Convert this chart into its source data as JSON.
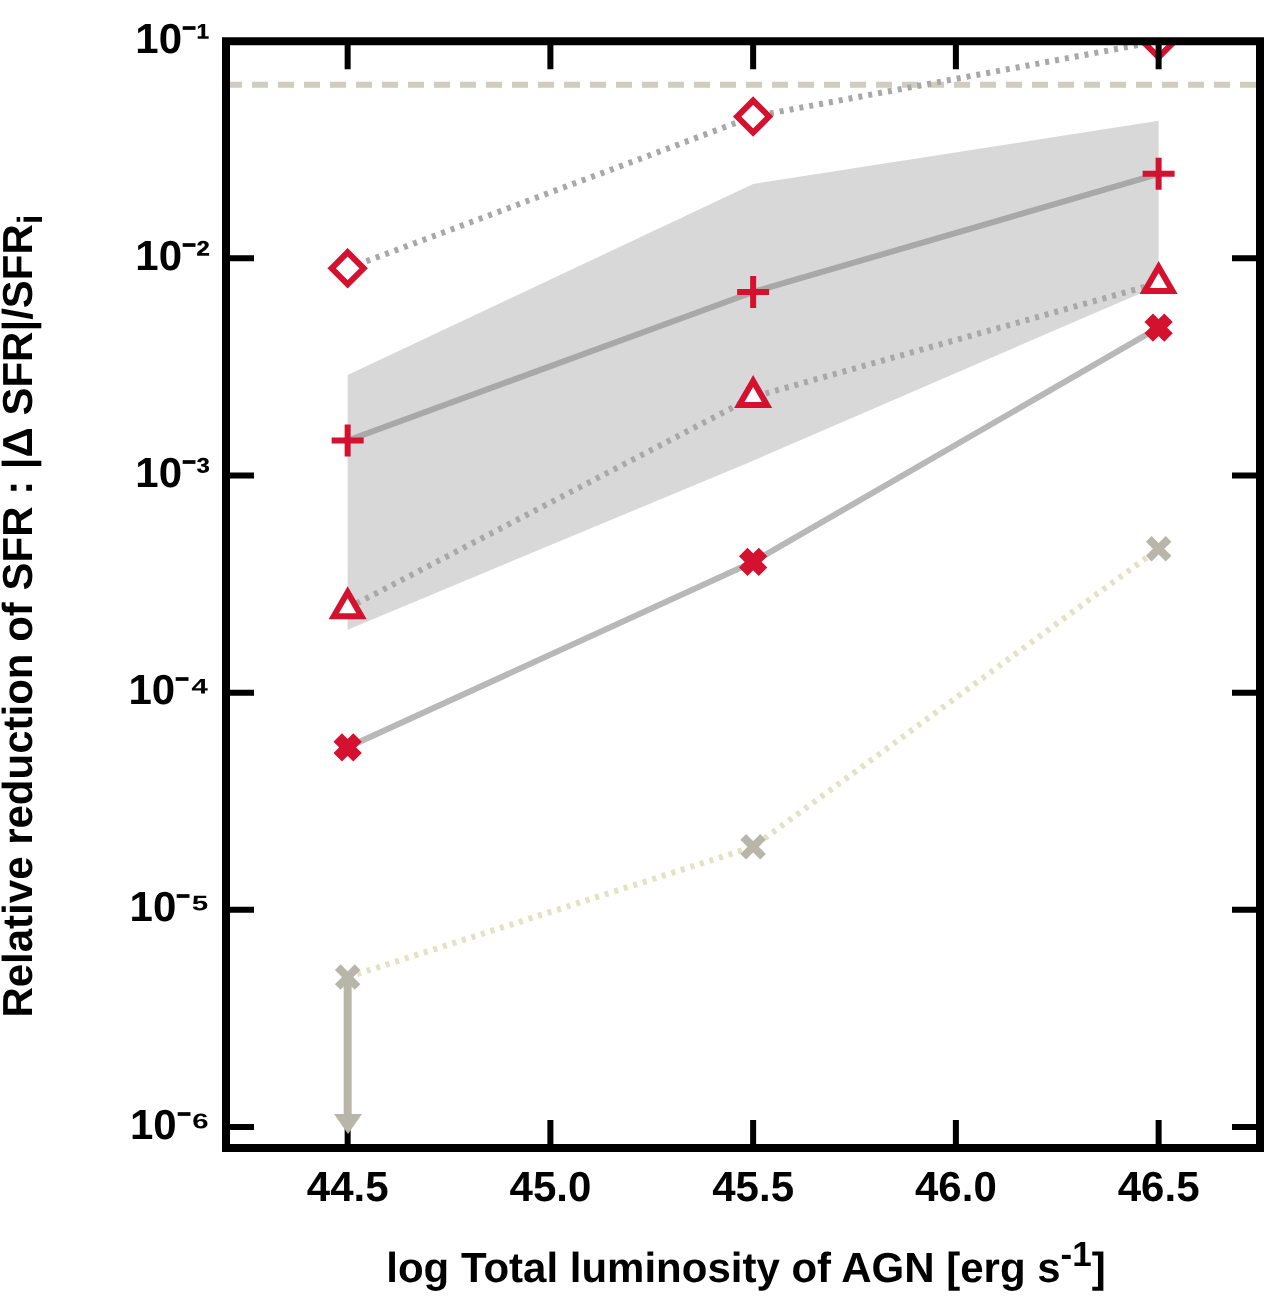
{
  "chart_data": {
    "type": "line",
    "xlabel": "log Total luminosity of AGN [erg s$^{-1}$]",
    "ylabel": "Relative reduction of SFR : |Δ SFR|/SFR$_{i}$",
    "x": [
      44.5,
      45.5,
      46.5
    ],
    "series": [
      {
        "color": "#a8a8a8",
        "marker": "none",
        "line_style": "dotted",
        "values": [
          0.009,
          0.045,
          0.1
        ]
      },
      {
        "color": "#a8a8a8",
        "marker": "none",
        "line_style": "solid",
        "values": [
          0.00145,
          0.007,
          0.0245
        ],
        "lower": [
          0.000195,
          0.00117,
          0.0075
        ],
        "upper": [
          0.0029,
          0.022,
          0.043
        ]
      },
      {
        "color": "#a8a8a8",
        "marker": "none",
        "line_style": "dotted",
        "values": [
          0.000245,
          0.0023,
          0.0077
        ]
      },
      {
        "color": "#b8b8b8",
        "marker": "none",
        "line_style": "solid",
        "values": [
          5.6e-05,
          0.0004,
          0.0048
        ]
      },
      {
        "color": "#e2e2c4",
        "marker": "none",
        "line_style": "dotted",
        "values": [
          4.9e-06,
          1.95e-05,
          0.00046
        ]
      },
      {
        "type": "scatter",
        "color": "#d4112f",
        "marker": "diamond",
        "values": [
          0.009,
          0.045,
          0.1
        ]
      },
      {
        "type": "scatter",
        "color": "#d4112f",
        "marker": "cross",
        "values": [
          0.00145,
          0.007,
          0.0245
        ]
      },
      {
        "type": "scatter",
        "color": "#d4112f",
        "marker": "triangle",
        "values": [
          0.000245,
          0.0023,
          0.0077
        ]
      },
      {
        "type": "scatter",
        "color": "#d4112f",
        "marker": "x",
        "values": [
          5.6e-05,
          0.0004,
          0.0048
        ]
      },
      {
        "type": "scatter",
        "color": "#b8b6a8",
        "marker": "x",
        "values": [
          4.9e-06,
          1.95e-05,
          0.00046
        ],
        "errors": [
          [
            1e-06,
            4.9e-06
          ],
          null,
          null
        ]
      }
    ],
    "ref_lines": [
      {
        "axis": "y",
        "value": 0.063,
        "color": "#d0ccc0",
        "line_style": "dashed"
      }
    ],
    "xlim": [
      44.2,
      46.75
    ],
    "xticks": [
      {
        "value": 44.5,
        "label": "44.5"
      },
      {
        "value": 45,
        "label": "45.0"
      },
      {
        "value": 45.5,
        "label": "45.5"
      },
      {
        "value": 46,
        "label": "46.0"
      },
      {
        "value": 46.5,
        "label": "46.5"
      }
    ],
    "ylim": [
      8e-07,
      0.1
    ],
    "yticks": [
      {
        "value": 0.1,
        "label": "10⁻¹"
      },
      {
        "value": 0.01,
        "label": "10⁻²"
      },
      {
        "value": 0.001,
        "label": "10⁻³"
      },
      {
        "value": 0.0001,
        "label": "10⁻⁴"
      },
      {
        "value": 1e-05,
        "label": "10⁻⁵"
      },
      {
        "value": 1e-06,
        "label": "10⁻⁶"
      }
    ],
    "log": "y",
    "grid": false,
    "legend": false
  }
}
